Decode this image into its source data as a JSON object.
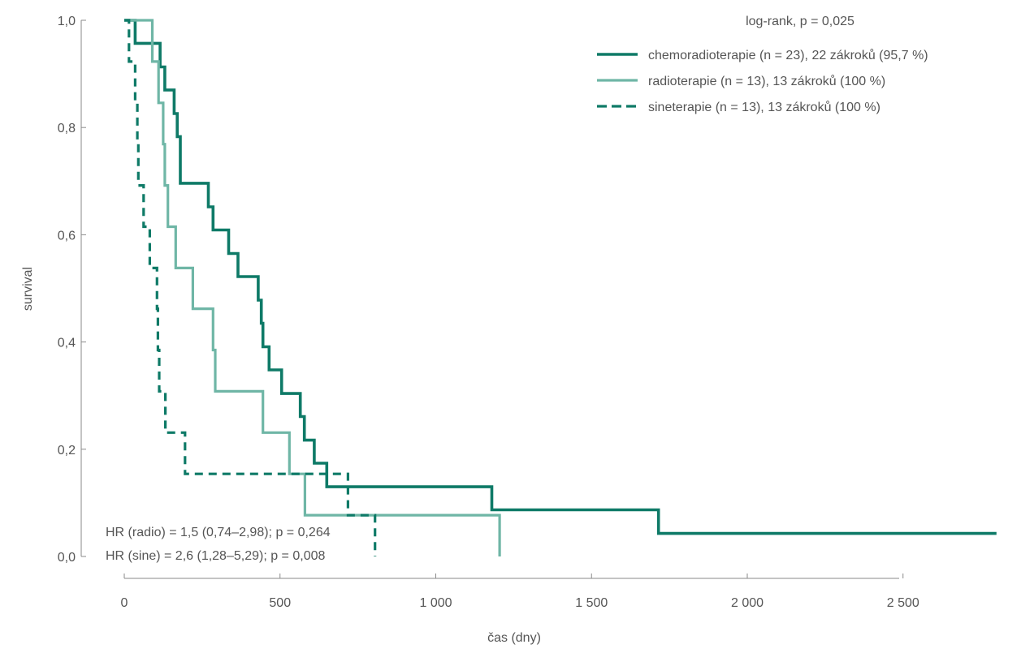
{
  "chart_data": {
    "type": "line",
    "subtype": "kaplan-meier-step",
    "title": "",
    "xlabel": "čas (dny)",
    "ylabel": "survival",
    "xlim": [
      0,
      2800
    ],
    "ylim": [
      0,
      1
    ],
    "x_ticks": [
      0,
      500,
      1000,
      1500,
      2000,
      2500
    ],
    "x_tick_labels": [
      "0",
      "500",
      "1 000",
      "1 500",
      "2 000",
      "2 500"
    ],
    "y_ticks": [
      0,
      0.2,
      0.4,
      0.6,
      0.8,
      1.0
    ],
    "y_tick_labels": [
      "0,0",
      "0,2",
      "0,4",
      "0,6",
      "0,8",
      "1,0"
    ],
    "grid": false,
    "legend_title": "log-rank, p = 0,025",
    "legend_position": "top-right",
    "series": [
      {
        "name": "chemoradioterapie (n = 23), 22 zákroků (95,7 %)",
        "color": "#0e7a67",
        "style": "solid-thick",
        "points": [
          [
            0,
            1.0
          ],
          [
            35,
            1.0
          ],
          [
            35,
            0.957
          ],
          [
            115,
            0.957
          ],
          [
            115,
            0.913
          ],
          [
            130,
            0.913
          ],
          [
            130,
            0.87
          ],
          [
            160,
            0.87
          ],
          [
            160,
            0.826
          ],
          [
            170,
            0.826
          ],
          [
            170,
            0.783
          ],
          [
            180,
            0.783
          ],
          [
            180,
            0.696
          ],
          [
            270,
            0.696
          ],
          [
            270,
            0.652
          ],
          [
            285,
            0.652
          ],
          [
            285,
            0.609
          ],
          [
            335,
            0.609
          ],
          [
            335,
            0.565
          ],
          [
            365,
            0.565
          ],
          [
            365,
            0.522
          ],
          [
            430,
            0.522
          ],
          [
            430,
            0.478
          ],
          [
            440,
            0.478
          ],
          [
            440,
            0.435
          ],
          [
            445,
            0.435
          ],
          [
            445,
            0.391
          ],
          [
            465,
            0.391
          ],
          [
            465,
            0.348
          ],
          [
            505,
            0.348
          ],
          [
            505,
            0.304
          ],
          [
            565,
            0.304
          ],
          [
            565,
            0.261
          ],
          [
            578,
            0.261
          ],
          [
            578,
            0.217
          ],
          [
            610,
            0.217
          ],
          [
            610,
            0.174
          ],
          [
            650,
            0.174
          ],
          [
            650,
            0.13
          ],
          [
            1180,
            0.13
          ],
          [
            1180,
            0.087
          ],
          [
            1715,
            0.087
          ],
          [
            1715,
            0.043
          ],
          [
            2800,
            0.043
          ]
        ]
      },
      {
        "name": "radioterapie (n = 13), 13 zákroků (100 %)",
        "color": "#6fb6a6",
        "style": "solid",
        "points": [
          [
            0,
            1.0
          ],
          [
            90,
            1.0
          ],
          [
            90,
            0.923
          ],
          [
            110,
            0.923
          ],
          [
            110,
            0.846
          ],
          [
            125,
            0.846
          ],
          [
            125,
            0.769
          ],
          [
            130,
            0.769
          ],
          [
            130,
            0.692
          ],
          [
            140,
            0.692
          ],
          [
            140,
            0.615
          ],
          [
            165,
            0.615
          ],
          [
            165,
            0.538
          ],
          [
            220,
            0.538
          ],
          [
            220,
            0.462
          ],
          [
            285,
            0.462
          ],
          [
            285,
            0.385
          ],
          [
            292,
            0.385
          ],
          [
            292,
            0.308
          ],
          [
            445,
            0.308
          ],
          [
            445,
            0.231
          ],
          [
            530,
            0.231
          ],
          [
            530,
            0.154
          ],
          [
            580,
            0.154
          ],
          [
            580,
            0.077
          ],
          [
            1205,
            0.077
          ],
          [
            1205,
            0.0
          ]
        ]
      },
      {
        "name": "sineterapie (n = 13), 13 zákroků (100 %)",
        "color": "#0e7a67",
        "style": "dashed",
        "points": [
          [
            0,
            1.0
          ],
          [
            15,
            1.0
          ],
          [
            15,
            0.923
          ],
          [
            35,
            0.923
          ],
          [
            35,
            0.846
          ],
          [
            42,
            0.846
          ],
          [
            42,
            0.769
          ],
          [
            45,
            0.769
          ],
          [
            45,
            0.692
          ],
          [
            62,
            0.692
          ],
          [
            62,
            0.615
          ],
          [
            82,
            0.615
          ],
          [
            82,
            0.538
          ],
          [
            105,
            0.538
          ],
          [
            105,
            0.462
          ],
          [
            108,
            0.462
          ],
          [
            108,
            0.385
          ],
          [
            112,
            0.385
          ],
          [
            112,
            0.308
          ],
          [
            132,
            0.308
          ],
          [
            132,
            0.231
          ],
          [
            195,
            0.231
          ],
          [
            195,
            0.154
          ],
          [
            718,
            0.154
          ],
          [
            718,
            0.077
          ],
          [
            805,
            0.077
          ],
          [
            805,
            0.0
          ]
        ]
      }
    ],
    "annotations": [
      "HR (radio) = 1,5 (0,74–2,98); p = 0,264",
      "HR (sine) = 2,6 (1,28–5,29); p = 0,008"
    ]
  }
}
